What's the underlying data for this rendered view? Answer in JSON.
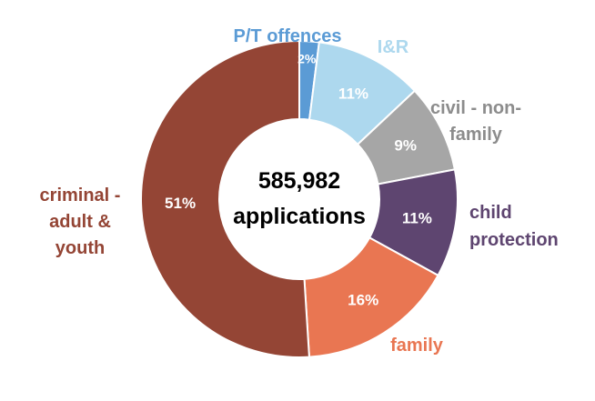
{
  "chart_data": {
    "type": "pie",
    "style": "donut",
    "center_label": [
      "585,982",
      "applications"
    ],
    "slices": [
      {
        "label": "P/T offences",
        "label_lines": [
          "P/T offences"
        ],
        "value": 2,
        "display": "2%",
        "color": "#5b9bd5"
      },
      {
        "label": "I&R",
        "label_lines": [
          "I&R"
        ],
        "value": 11,
        "display": "11%",
        "color": "#add8ee"
      },
      {
        "label": "civil - non-family",
        "label_lines": [
          "civil - non-",
          "family"
        ],
        "value": 9,
        "display": "9%",
        "color": "#a6a6a6"
      },
      {
        "label": "child protection",
        "label_lines": [
          "child",
          "protection"
        ],
        "value": 11,
        "display": "11%",
        "color": "#5e4570"
      },
      {
        "label": "family",
        "label_lines": [
          "family"
        ],
        "value": 16,
        "display": "16%",
        "color": "#e97652"
      },
      {
        "label": "criminal - adult & youth",
        "label_lines": [
          "criminal -",
          "adult &",
          "youth"
        ],
        "value": 51,
        "display": "51%",
        "color": "#944535"
      }
    ],
    "label_colors": {
      "P/T offences": "#5b9bd5",
      "I&R": "#add8ee",
      "civil - non-family": "#8c8c8c",
      "child protection": "#5e4570",
      "family": "#e97652",
      "criminal - adult & youth": "#944535"
    }
  }
}
